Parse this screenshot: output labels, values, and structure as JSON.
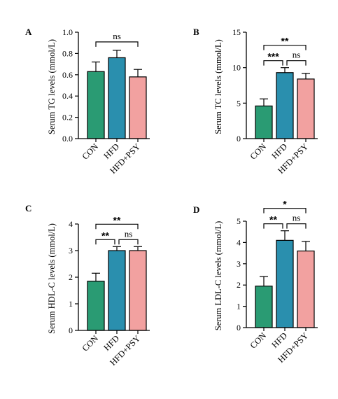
{
  "colors": {
    "CON": "#2a9b73",
    "HFD": "#2a8fae",
    "HFD+PSY": "#f2a1a0",
    "stroke": "#000000"
  },
  "chart_data": [
    {
      "type": "bar",
      "panel": "A",
      "categories": [
        "CON",
        "HFD",
        "HFD+PSY"
      ],
      "values": [
        0.63,
        0.76,
        0.58
      ],
      "errors": [
        0.09,
        0.07,
        0.07
      ],
      "ylabel": "Serum TG levels (mmol/L)",
      "ylim": [
        0,
        1.0
      ],
      "yticks": [
        "0.0",
        "0.2",
        "0.4",
        "0.6",
        "0.8",
        "1.0"
      ],
      "significance": [
        {
          "from": 0,
          "to": 2,
          "label": "ns"
        }
      ]
    },
    {
      "type": "bar",
      "panel": "B",
      "categories": [
        "CON",
        "HFD",
        "HFD+PSY"
      ],
      "values": [
        4.6,
        9.3,
        8.4
      ],
      "errors": [
        1.0,
        0.7,
        0.8
      ],
      "ylabel": "Serum TC levels (mmol/L)",
      "ylim": [
        0,
        15
      ],
      "yticks": [
        "0",
        "5",
        "10",
        "15"
      ],
      "significance": [
        {
          "from": 0,
          "to": 2,
          "label": "**"
        },
        {
          "from": 0,
          "to": 1,
          "label": "***"
        },
        {
          "from": 1,
          "to": 2,
          "label": "ns"
        }
      ]
    },
    {
      "type": "bar",
      "panel": "C",
      "categories": [
        "CON",
        "HFD",
        "HFD+PSY"
      ],
      "values": [
        1.85,
        3.0,
        3.0
      ],
      "errors": [
        0.3,
        0.15,
        0.15
      ],
      "ylabel": "Serum HDL-C levels (mmol/L)",
      "ylim": [
        0,
        4
      ],
      "yticks": [
        "0",
        "1",
        "2",
        "3",
        "4"
      ],
      "significance": [
        {
          "from": 0,
          "to": 2,
          "label": "**"
        },
        {
          "from": 0,
          "to": 1,
          "label": "**"
        },
        {
          "from": 1,
          "to": 2,
          "label": "ns"
        }
      ]
    },
    {
      "type": "bar",
      "panel": "D",
      "categories": [
        "CON",
        "HFD",
        "HFD+PSY"
      ],
      "values": [
        1.95,
        4.1,
        3.6
      ],
      "errors": [
        0.45,
        0.45,
        0.45
      ],
      "ylabel": "Serum LDL-C levels (mmol/L)",
      "ylim": [
        0,
        5
      ],
      "yticks": [
        "0",
        "1",
        "2",
        "3",
        "4",
        "5"
      ],
      "significance": [
        {
          "from": 0,
          "to": 2,
          "label": "*"
        },
        {
          "from": 0,
          "to": 1,
          "label": "**"
        },
        {
          "from": 1,
          "to": 2,
          "label": "ns"
        }
      ]
    }
  ]
}
